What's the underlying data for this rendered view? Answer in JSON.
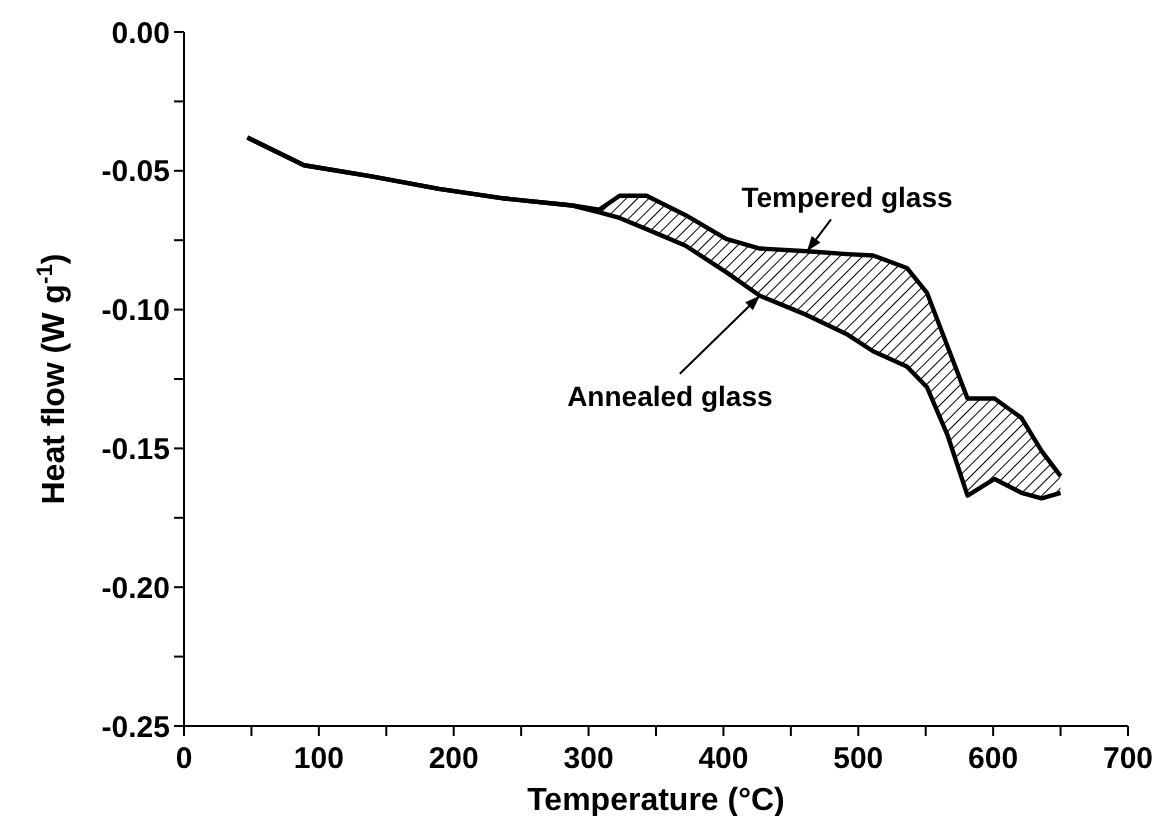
{
  "chart_data": {
    "type": "line",
    "xlabel": "Temperature (°C)",
    "ylabel": "Heat flow (W g$^{-1}$)",
    "x": [
      47,
      89,
      139,
      189,
      238,
      288,
      308,
      323,
      343,
      372,
      402,
      427,
      462,
      492,
      511,
      536,
      551,
      566,
      581,
      601,
      621,
      636,
      650
    ],
    "series": [
      {
        "name": "Tempered glass",
        "color": "#000000",
        "values": [
          -0.038,
          -0.048,
          -0.052,
          -0.0565,
          -0.06,
          -0.0625,
          -0.064,
          -0.059,
          -0.059,
          -0.066,
          -0.0745,
          -0.078,
          -0.079,
          -0.08,
          -0.0805,
          -0.085,
          -0.094,
          -0.113,
          -0.132,
          -0.132,
          -0.139,
          -0.151,
          -0.16
        ]
      },
      {
        "name": "Annealed glass",
        "color": "#000000",
        "values": [
          -0.038,
          -0.048,
          -0.052,
          -0.0565,
          -0.06,
          -0.0625,
          -0.065,
          -0.067,
          -0.071,
          -0.077,
          -0.0865,
          -0.095,
          -0.102,
          -0.109,
          -0.115,
          -0.1205,
          -0.128,
          -0.145,
          -0.167,
          -0.161,
          -0.166,
          -0.168,
          -0.166
        ]
      }
    ],
    "xlim": [
      0,
      700
    ],
    "xticks": [
      0,
      {
        "value": 50,
        "label": null
      },
      100,
      {
        "value": 150,
        "label": null
      },
      200,
      {
        "value": 250,
        "label": null
      },
      300,
      {
        "value": 350,
        "label": null
      },
      400,
      {
        "value": 450,
        "label": null
      },
      500,
      {
        "value": 550,
        "label": null
      },
      600,
      {
        "value": 650,
        "label": null
      },
      700
    ],
    "ylim": [
      -0.25,
      0
    ],
    "yticks": [
      {
        "value": -0.25,
        "label": "-0.25"
      },
      {
        "value": -0.225,
        "label": null
      },
      {
        "value": -0.2,
        "label": "-0.20"
      },
      {
        "value": -0.175,
        "label": null
      },
      {
        "value": -0.15,
        "label": "-0.15"
      },
      {
        "value": -0.125,
        "label": null
      },
      {
        "value": -0.1,
        "label": "-0.10"
      },
      {
        "value": -0.075,
        "label": null
      },
      {
        "value": -0.05,
        "label": "-0.05"
      },
      {
        "value": -0.025,
        "label": null
      },
      {
        "value": 0,
        "label": "0.00"
      }
    ],
    "grid": false,
    "legend": false,
    "marker": "none",
    "line_style": "solid"
  }
}
